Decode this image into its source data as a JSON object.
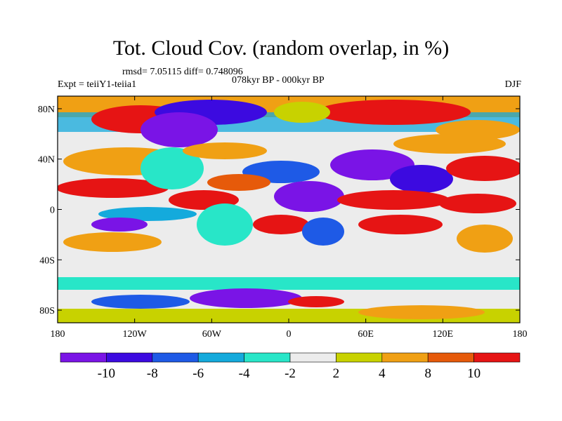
{
  "map": {
    "title": "Tot. Cloud Cov. (random overlap, in %)",
    "stats_line": "rmsd= 7.05115 diff= 0.748096",
    "experiment_label": "Expt = teiiY1-teiia1",
    "period_label": "078kyr BP - 000kyr BP",
    "season_label": "DJF",
    "lat_ticks": [
      "80N",
      "40N",
      "0",
      "40S",
      "80S"
    ],
    "lat_values": [
      80,
      40,
      0,
      -40,
      -80
    ],
    "lon_ticks": [
      "180",
      "120W",
      "60W",
      "0",
      "60E",
      "120E",
      "180"
    ],
    "lon_values": [
      -180,
      -120,
      -60,
      0,
      60,
      120,
      180
    ],
    "lat_range": [
      -90,
      90
    ],
    "lon_range": [
      -180,
      180
    ]
  },
  "colorbar": {
    "labels": [
      "-10",
      "-8",
      "-6",
      "-4",
      "-2",
      "2",
      "4",
      "8",
      "10"
    ],
    "colors": [
      "#7a14e6",
      "#3c0ae0",
      "#1e5ae6",
      "#14aadc",
      "#28e6c8",
      "#ececec",
      "#c8d200",
      "#f0a014",
      "#e65a0a",
      "#e61414"
    ]
  },
  "palette": {
    "dark_purple": "#7a14e6",
    "blue_purple": "#3c0ae0",
    "blue": "#1e5ae6",
    "light_blue": "#14aadc",
    "cyan": "#28e6c8",
    "neutral": "#ececec",
    "yellow_green": "#c8d200",
    "orange": "#f0a014",
    "dark_orange": "#e65a0a",
    "red": "#e61414"
  }
}
